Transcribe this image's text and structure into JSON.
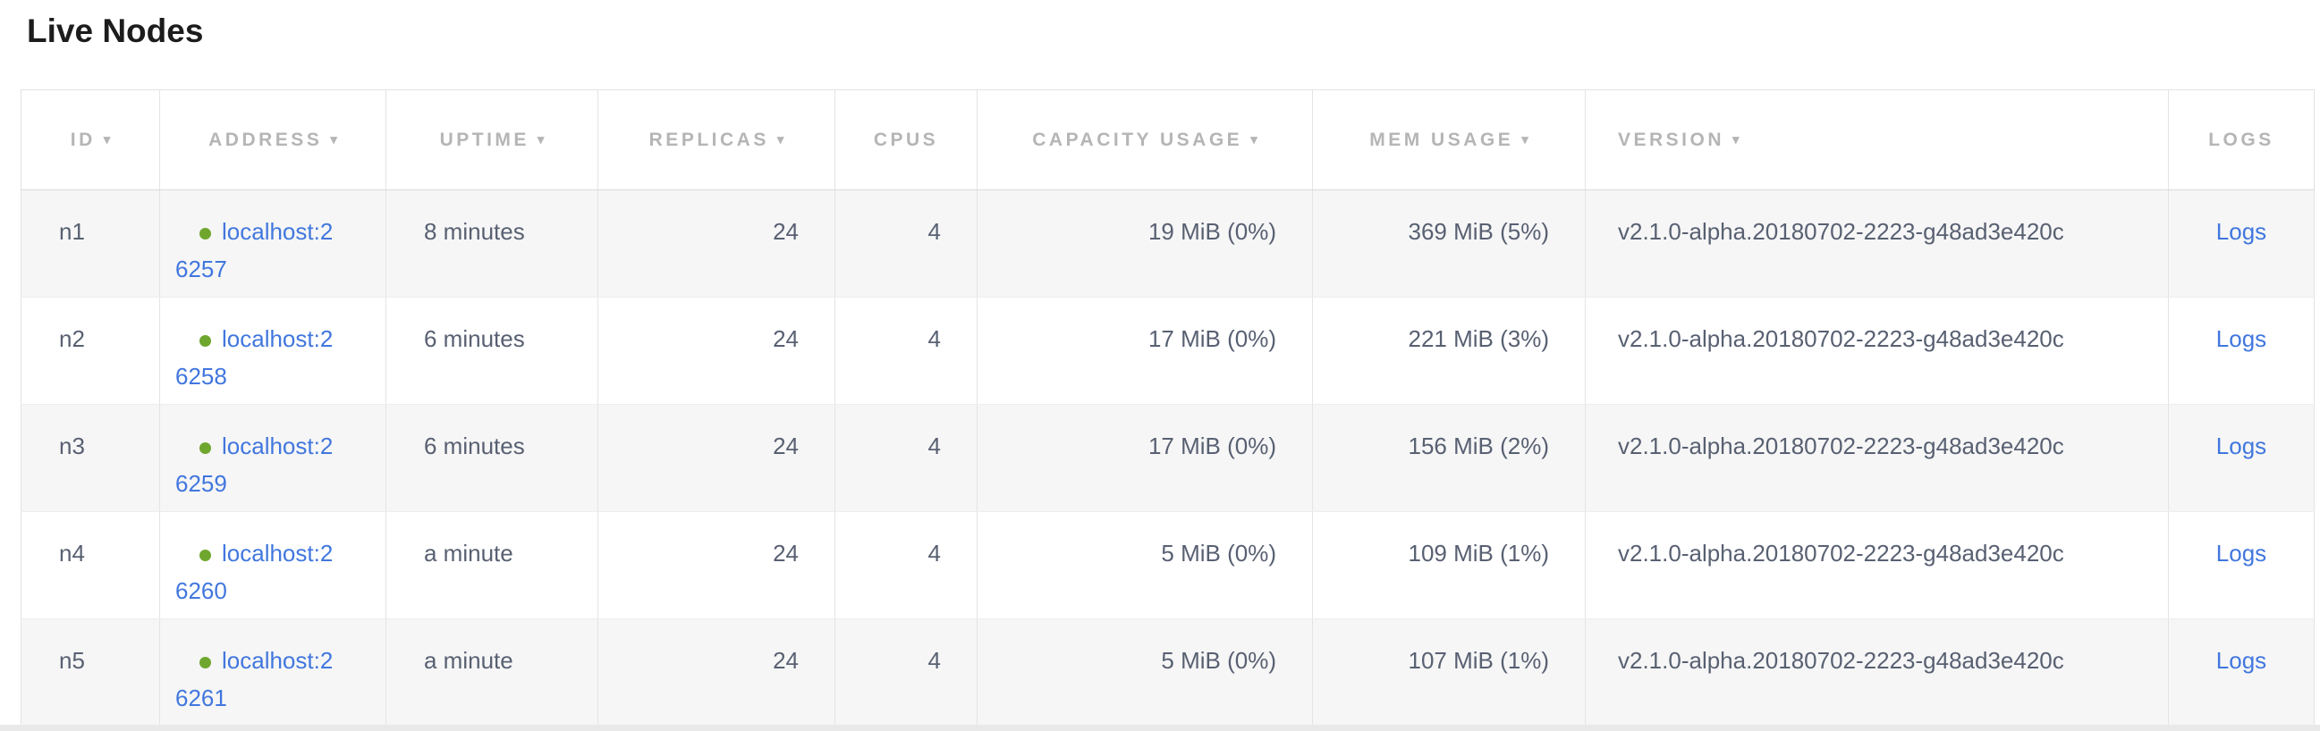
{
  "page": {
    "title": "Live Nodes"
  },
  "colors": {
    "link_blue": "#4177de",
    "live_dot_green": "#6fa62e",
    "header_text_gray": "#b5b5b5",
    "data_text_slate": "#586072",
    "row_stripe_gray": "#f6f6f6"
  },
  "table": {
    "sort_indicator": "▾",
    "columns": [
      {
        "id": "id",
        "label": "ID",
        "sortable": true
      },
      {
        "id": "address",
        "label": "ADDRESS",
        "sortable": true
      },
      {
        "id": "uptime",
        "label": "UPTIME",
        "sortable": true
      },
      {
        "id": "replicas",
        "label": "REPLICAS",
        "sortable": true
      },
      {
        "id": "cpus",
        "label": "CPUS",
        "sortable": false
      },
      {
        "id": "capacity_usage",
        "label": "CAPACITY USAGE",
        "sortable": true
      },
      {
        "id": "mem_usage",
        "label": "MEM USAGE",
        "sortable": true
      },
      {
        "id": "version",
        "label": "VERSION",
        "sortable": true
      },
      {
        "id": "logs",
        "label": "LOGS",
        "sortable": false
      }
    ],
    "rows": [
      {
        "id": "n1",
        "status": "live",
        "address": "localhost:26257",
        "uptime": "8 minutes",
        "replicas": "24",
        "cpus": "4",
        "capacity_usage": "19 MiB (0%)",
        "mem_usage": "369 MiB (5%)",
        "version": "v2.1.0-alpha.20180702-2223-g48ad3e420c",
        "logs": "Logs"
      },
      {
        "id": "n2",
        "status": "live",
        "address": "localhost:26258",
        "uptime": "6 minutes",
        "replicas": "24",
        "cpus": "4",
        "capacity_usage": "17 MiB (0%)",
        "mem_usage": "221 MiB (3%)",
        "version": "v2.1.0-alpha.20180702-2223-g48ad3e420c",
        "logs": "Logs"
      },
      {
        "id": "n3",
        "status": "live",
        "address": "localhost:26259",
        "uptime": "6 minutes",
        "replicas": "24",
        "cpus": "4",
        "capacity_usage": "17 MiB (0%)",
        "mem_usage": "156 MiB (2%)",
        "version": "v2.1.0-alpha.20180702-2223-g48ad3e420c",
        "logs": "Logs"
      },
      {
        "id": "n4",
        "status": "live",
        "address": "localhost:26260",
        "uptime": "a minute",
        "replicas": "24",
        "cpus": "4",
        "capacity_usage": "5 MiB (0%)",
        "mem_usage": "109 MiB (1%)",
        "version": "v2.1.0-alpha.20180702-2223-g48ad3e420c",
        "logs": "Logs"
      },
      {
        "id": "n5",
        "status": "live",
        "address": "localhost:26261",
        "uptime": "a minute",
        "replicas": "24",
        "cpus": "4",
        "capacity_usage": "5 MiB (0%)",
        "mem_usage": "107 MiB (1%)",
        "version": "v2.1.0-alpha.20180702-2223-g48ad3e420c",
        "logs": "Logs"
      }
    ]
  }
}
